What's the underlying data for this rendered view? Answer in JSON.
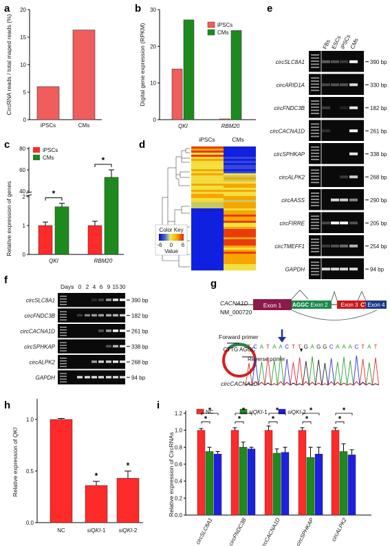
{
  "panel_letters": [
    "a",
    "b",
    "c",
    "d",
    "e",
    "f",
    "g",
    "h",
    "i"
  ],
  "colors": {
    "red": "#f05d5d",
    "red_bright": "#ff2a2a",
    "green": "#1e8a1e",
    "blue": "#1f1fe0",
    "gel": "#0a0a0a",
    "band": "#ffffff"
  },
  "chart_data": [
    {
      "panel": "a",
      "type": "bar",
      "categories": [
        "iPSCs",
        "CMs"
      ],
      "values": [
        6.0,
        16.3
      ],
      "ylabel": "CircRNA reads / total maped reads (%)",
      "ylim": [
        0,
        20
      ],
      "yticks": [
        "0",
        "5",
        "10",
        "15",
        "20"
      ]
    },
    {
      "panel": "b",
      "type": "bar",
      "categories": [
        "QKI",
        "RBM20"
      ],
      "series": [
        {
          "name": "iPSCs",
          "values": [
            13.8,
            0.2
          ]
        },
        {
          "name": "CMs",
          "values": [
            27.2,
            24.3
          ]
        }
      ],
      "ylabel": "Digital gene expression (RPKM)",
      "ylim": [
        0,
        30
      ],
      "yticks": [
        "0",
        "10",
        "20",
        "30"
      ],
      "legend": "top-right"
    },
    {
      "panel": "c",
      "type": "bar",
      "categories": [
        "QKI",
        "RBM20"
      ],
      "series": [
        {
          "name": "iPSCs",
          "values": [
            1.0,
            1.0
          ],
          "errors": [
            0.12,
            0.15
          ]
        },
        {
          "name": "CMs",
          "values": [
            1.65,
            53
          ],
          "errors": [
            0.12,
            7
          ]
        }
      ],
      "ylabel": "Relative expression of genes",
      "axis_break": true,
      "yticks_lower": [
        "0",
        "1",
        "2"
      ],
      "yticks_upper": [
        "40",
        "60",
        "80"
      ],
      "significance": "*",
      "legend": "top-left"
    },
    {
      "panel": "d",
      "type": "heatmap",
      "columns": [
        "iPSCs",
        "CMs"
      ],
      "color_key_title": "Color Key",
      "color_key_ticks": [
        "-6",
        "0",
        "6"
      ],
      "color_key_label": "Value"
    },
    {
      "panel": "h",
      "type": "bar",
      "categories": [
        "NC",
        "siQKI-1",
        "siQKI-2"
      ],
      "category_parts": [
        {
          "it": "",
          "rest": "NC"
        },
        {
          "it": "siQKI",
          "rest": "-1"
        },
        {
          "it": "siQKI",
          "rest": "-2"
        }
      ],
      "values": [
        1.0,
        0.36,
        0.43
      ],
      "errors": [
        0.01,
        0.04,
        0.07
      ],
      "ylabel_prefix": "Relative expression of ",
      "ylabel_italic": "QKI",
      "ylim": [
        0,
        1.2
      ],
      "yticks": [
        "0.0",
        "0.5",
        "1.0"
      ],
      "significance": "*"
    },
    {
      "panel": "i",
      "type": "bar",
      "categories": [
        "circSLC8A1",
        "circFNDC3B",
        "circCACNA1D",
        "circSPHKAP",
        "circALPK2"
      ],
      "series": [
        {
          "name": "NC",
          "values": [
            1.0,
            1.0,
            1.0,
            1.0,
            1.0
          ],
          "errors": [
            0.02,
            0.03,
            0.05,
            0.03,
            0.03
          ]
        },
        {
          "name": "siQKI-1",
          "values": [
            0.75,
            0.8,
            0.73,
            0.68,
            0.75
          ],
          "errors": [
            0.05,
            0.06,
            0.05,
            0.12,
            0.09
          ]
        },
        {
          "name": "siQKI-2",
          "values": [
            0.72,
            0.78,
            0.74,
            0.72,
            0.71
          ],
          "errors": [
            0.03,
            0.02,
            0.06,
            0.08,
            0.06
          ]
        }
      ],
      "legend_parts": [
        {
          "it": "",
          "rest": "NC"
        },
        {
          "it": "siQKI",
          "rest": "-1"
        },
        {
          "it": "siQKI",
          "rest": "-2"
        }
      ],
      "ylabel": "Relative expression of CircRNAs",
      "ylim": [
        0,
        1.2
      ],
      "yticks": [
        "0.0",
        "0.2",
        "0.4",
        "0.6",
        "0.8",
        "1.0",
        "1.2"
      ],
      "significance": "*",
      "legend": "top"
    }
  ],
  "gel_e": {
    "columns": [
      "FBs",
      "ESCs",
      "iPSCs",
      "CMs"
    ],
    "rows": [
      {
        "name": "circSLC8A1",
        "size": "390 bp",
        "bands": [
          0.35,
          0.3,
          0.2,
          1.0
        ]
      },
      {
        "name": "circARID1A",
        "size": "330 bp",
        "bands": [
          0.25,
          0.3,
          0.3,
          0.85
        ]
      },
      {
        "name": "circFNDC3B",
        "size": "182 bp",
        "bands": [
          0.2,
          0.0,
          0.1,
          0.9
        ]
      },
      {
        "name": "circCACNA1D",
        "size": "261 bp",
        "bands": [
          0.15,
          0.0,
          0.0,
          1.0
        ]
      },
      {
        "name": "circSPHKAP",
        "size": "338 bp",
        "bands": [
          0.0,
          0.0,
          0.0,
          0.9
        ]
      },
      {
        "name": "circALPK2",
        "size": "268 bp",
        "bands": [
          0.0,
          0.0,
          0.2,
          0.8
        ]
      },
      {
        "name": "circAASS",
        "size": "290 bp",
        "bands": [
          0.0,
          0.85,
          0.8,
          0.5
        ]
      },
      {
        "name": "circFIRRE",
        "size": "205 bp",
        "bands": [
          0.25,
          1.0,
          1.0,
          0.3
        ]
      },
      {
        "name": "circTMEFF1",
        "size": "254 bp",
        "bands": [
          0.2,
          0.3,
          0.4,
          0.7
        ]
      },
      {
        "name": "GAPDH",
        "size": "94 bp",
        "bands": [
          0.85,
          0.85,
          0.85,
          0.85
        ]
      }
    ]
  },
  "gel_f": {
    "days_label": "Days",
    "days": [
      "0",
      "2",
      "4",
      "6",
      "9",
      "15",
      "30"
    ],
    "rows": [
      {
        "name": "circSLC8A1",
        "size": "390 bp",
        "bands": [
          0,
          0,
          0.15,
          0.25,
          0.6,
          0.9,
          1.0
        ]
      },
      {
        "name": "circFNDC3B",
        "size": "182 bp",
        "bands": [
          0.2,
          0.5,
          0.6,
          0.6,
          0.65,
          0.7,
          0.8
        ]
      },
      {
        "name": "circCACNA1D",
        "size": "261 bp",
        "bands": [
          0,
          0,
          0,
          0.3,
          0.6,
          1.0,
          1.0
        ]
      },
      {
        "name": "circSPHKAP",
        "size": "338 bp",
        "bands": [
          0,
          0,
          0,
          0,
          0.3,
          0.7,
          0.9
        ]
      },
      {
        "name": "circALPK2",
        "size": "268 bp",
        "bands": [
          0,
          0,
          0.6,
          0.8,
          0.8,
          0.9,
          0.9
        ]
      },
      {
        "name": "GAPDH",
        "size": "94 bp",
        "bands": [
          0.85,
          0.85,
          0.85,
          0.85,
          0.85,
          0.85,
          0.85
        ]
      }
    ]
  },
  "panel_g": {
    "gene": "CACNA1D",
    "accession": "NM_000720",
    "exon1": "Exon 1",
    "exon2_seq": "AGGC",
    "exon2": "Exon 2",
    "exon3": "Exon 3",
    "exon3_seq": "CTTG",
    "exon4": "Exon 4",
    "forward_primer": "Forward primer",
    "reverse_primer": "Reverse primer",
    "circle_name": "circCACNA1D",
    "circle_seq_top": "CTTG AGGC",
    "sequence": [
      "T",
      "C",
      "A",
      "T",
      "A",
      "A",
      "C",
      "T",
      "T",
      "G",
      "A",
      "G",
      "G",
      "C",
      "A",
      "A",
      "A",
      "C",
      "T",
      "A",
      "T"
    ],
    "seq_colors": {
      "A": "#2a9d2a",
      "C": "#2b2bd6",
      "G": "#222222",
      "T": "#d62b2b"
    }
  },
  "significance_mark": "*"
}
